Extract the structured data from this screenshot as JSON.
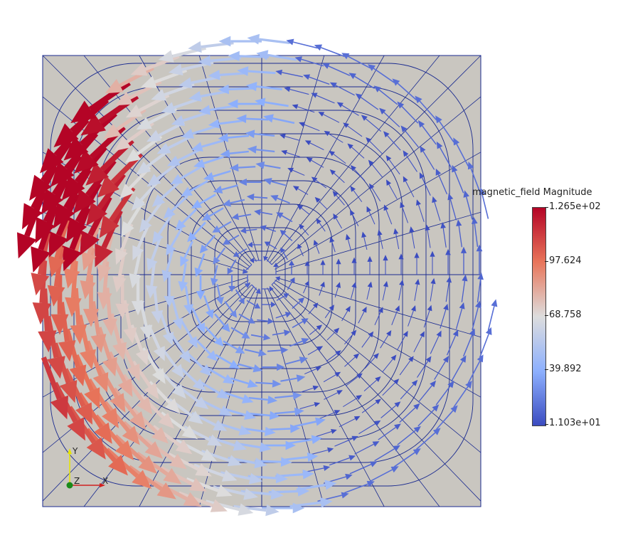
{
  "colorbar": {
    "title": "magnetic_field Magnitude",
    "labels": [
      "1.265e+02",
      "97.624",
      "68.758",
      "39.892",
      "1.103e+01"
    ],
    "colors": {
      "max": "#b40426",
      "mid": "#dddddd",
      "min": "#3b4cc0"
    }
  },
  "axes": {
    "x": "X",
    "y": "Y",
    "z": "Z"
  },
  "scene": {
    "background": "#c9c6c0",
    "mesh_color": "#1a2a8f"
  }
}
